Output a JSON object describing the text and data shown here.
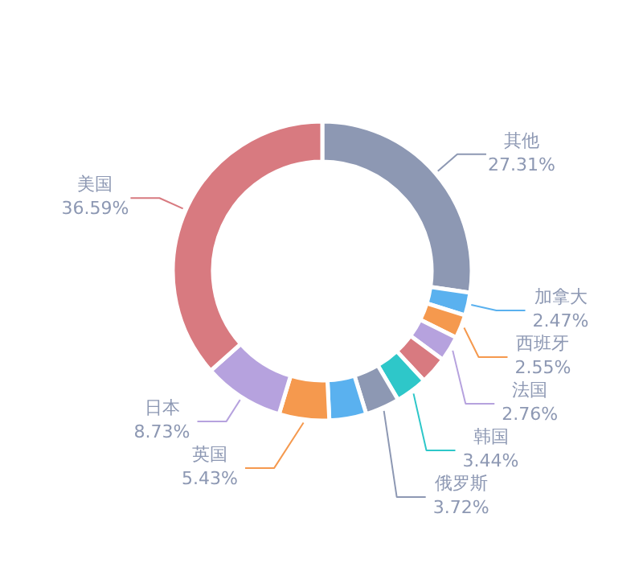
{
  "chart_data": {
    "type": "donut",
    "categories": [
      "其他",
      "加拿大",
      "西班牙",
      "法国",
      null,
      "韩国",
      "俄罗斯",
      null,
      "英国",
      "日本",
      "美国"
    ],
    "values": [
      27.31,
      2.47,
      2.55,
      2.76,
      3.0,
      3.44,
      3.72,
      4.0,
      5.43,
      8.73,
      36.59
    ],
    "value_labels": [
      "27.31%",
      "2.47%",
      "2.55%",
      "2.76%",
      null,
      "3.44%",
      "3.72%",
      null,
      "5.43%",
      "8.73%",
      "36.59%"
    ],
    "colors": [
      "#8d98b3",
      "#5ab1ef",
      "#f5994e",
      "#b6a2de",
      "#d87a80",
      "#2ec7c9",
      "#8d98b3",
      "#5ab1ef",
      "#f5994e",
      "#b6a2de",
      "#d87a80"
    ]
  }
}
